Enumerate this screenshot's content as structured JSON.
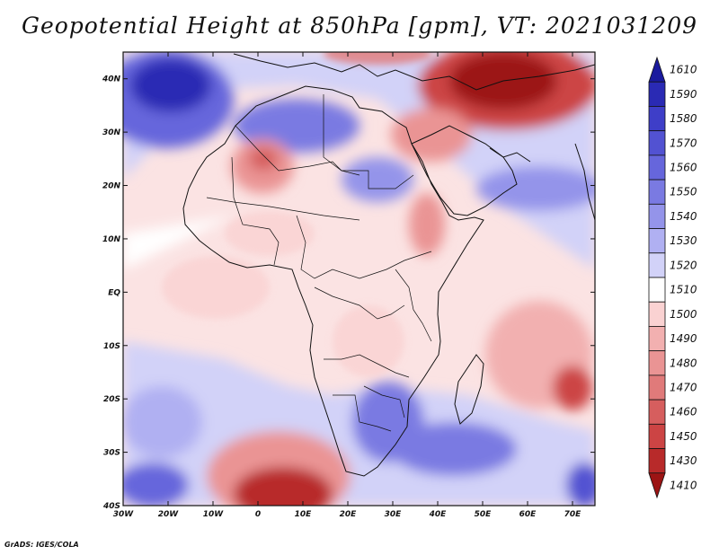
{
  "title": "Geopotential Height at 850hPa [gpm], VT: 2021031209",
  "credit": "GrADS: IGES/COLA",
  "chart_data": {
    "type": "heatmap",
    "variable": "Geopotential Height at 850hPa",
    "units": "gpm",
    "valid_time": "2021031209",
    "lon_range": [
      -30,
      75
    ],
    "lat_range": [
      -40,
      45
    ],
    "x_ticks": [
      {
        "value": -30,
        "label": "30W"
      },
      {
        "value": -20,
        "label": "20W"
      },
      {
        "value": -10,
        "label": "10W"
      },
      {
        "value": 0,
        "label": "0"
      },
      {
        "value": 10,
        "label": "10E"
      },
      {
        "value": 20,
        "label": "20E"
      },
      {
        "value": 30,
        "label": "30E"
      },
      {
        "value": 40,
        "label": "40E"
      },
      {
        "value": 50,
        "label": "50E"
      },
      {
        "value": 60,
        "label": "60E"
      },
      {
        "value": 70,
        "label": "70E"
      }
    ],
    "y_ticks": [
      {
        "value": 40,
        "label": "40N"
      },
      {
        "value": 30,
        "label": "30N"
      },
      {
        "value": 20,
        "label": "20N"
      },
      {
        "value": 10,
        "label": "10N"
      },
      {
        "value": 0,
        "label": "EQ"
      },
      {
        "value": -10,
        "label": "10S"
      },
      {
        "value": -20,
        "label": "20S"
      },
      {
        "value": -30,
        "label": "30S"
      },
      {
        "value": -40,
        "label": "40S"
      }
    ],
    "colorbar": {
      "levels": [
        1610,
        1590,
        1580,
        1570,
        1560,
        1550,
        1540,
        1530,
        1520,
        1510,
        1500,
        1490,
        1480,
        1470,
        1460,
        1450,
        1430,
        1410
      ],
      "colors": [
        "#1a1a9e",
        "#2a2ab4",
        "#3e3ec8",
        "#5252d2",
        "#6666dc",
        "#7a7ae2",
        "#9494ea",
        "#b0b0f2",
        "#d2d2f8",
        "#ffffff",
        "#fad2d2",
        "#f2b0b0",
        "#ea9494",
        "#e07a7a",
        "#d65e5e",
        "#cc4444",
        "#b82a2a",
        "#9c1414"
      ]
    },
    "features": [
      {
        "name": "high over western North Africa / Atlantic",
        "lon": -22,
        "lat": 36,
        "value": 1580
      },
      {
        "name": "low over Middle East / Arabia",
        "lon": 52,
        "lat": 40,
        "value": 1410
      },
      {
        "name": "Saharan heat low",
        "lon": 2,
        "lat": 24,
        "value": 1460
      },
      {
        "name": "cut-off low southwest of South Africa",
        "lon": 5,
        "lat": -39,
        "value": 1410
      },
      {
        "name": "tropical low Indian Ocean",
        "lon": 70,
        "lat": -19,
        "value": 1450
      },
      {
        "name": "high over southern Africa",
        "lon": 28,
        "lat": -26,
        "value": 1560
      },
      {
        "name": "high south Indian Ocean",
        "lon": 42,
        "lat": -30,
        "value": 1550
      }
    ]
  }
}
